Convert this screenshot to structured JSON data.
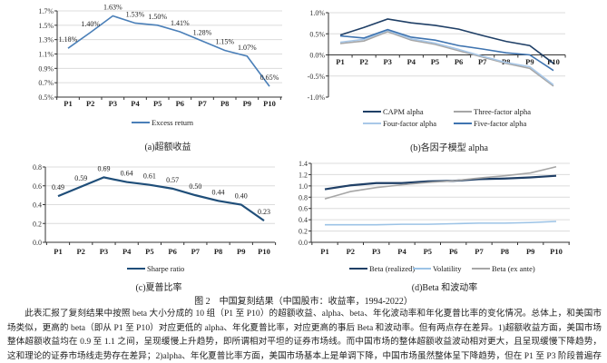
{
  "figure_caption": "图 2　中国复刻结果（中国股市：收益率，1994-2022）",
  "paragraph": "此表汇报了复刻结果中按照 beta 大小分成的 10 组（P1 至 P10）的超额收益、alpha、beta、年化波动率和年化夏普比率的变化情况。总体上，和美国市场类似，更高的 beta（即从 P1 至 P10）对应更低的 alpha、年化夏普比率，对应更高的事后 Beta 和波动率。但有两点存在差异。1)超额收益方面，美国市场整体超额收益均在 0.9 至 1.1 之间，呈现缓慢上升趋势，即所谓相对平坦的证券市场线。而中国市场的整体超额收益波动相对更大，且呈现缓慢下降趋势，这和理论的证券市场线走势存在差异；2)alpha、年化夏普比率方面，美国市场基本上是单调下降，中国市场虽然整体呈下降趋势，但在 P1 至 P3 阶段普遍存在阶段性上升现象。",
  "chart_data": [
    {
      "type": "line",
      "caption": "(a)超额收益",
      "categories": [
        "P1",
        "P2",
        "P3",
        "P4",
        "P5",
        "P6",
        "P7",
        "P8",
        "P9",
        "P10"
      ],
      "yticks": [
        "0.5%",
        "0.7%",
        "0.9%",
        "1.1%",
        "1.3%",
        "1.5%",
        "1.7%"
      ],
      "ylim": [
        0.5,
        1.7
      ],
      "grid": true,
      "legend": "bottom",
      "data_labels": [
        "1.18%",
        "1.40%",
        "1.63%",
        "1.53%",
        "1.50%",
        "1.41%",
        "1.28%",
        "1.15%",
        "1.07%",
        "0.65%"
      ],
      "series": [
        {
          "name": "Excess return",
          "color": "#4a7fb8",
          "values": [
            1.18,
            1.4,
            1.63,
            1.53,
            1.5,
            1.41,
            1.28,
            1.15,
            1.07,
            0.65
          ]
        }
      ]
    },
    {
      "type": "line",
      "caption": "(b)各因子模型 alpha",
      "categories": [
        "P1",
        "P2",
        "P3",
        "P4",
        "P5",
        "P6",
        "P7",
        "P8",
        "P9",
        "P10"
      ],
      "yticks": [
        "-1.0%",
        "-0.5%",
        "0.0%",
        "0.5%",
        "1.0%"
      ],
      "ylim": [
        -1.0,
        1.0
      ],
      "grid": true,
      "legend": "bottom",
      "series": [
        {
          "name": "CAPM alpha",
          "color": "#1f3f66",
          "values": [
            0.47,
            0.65,
            0.85,
            0.76,
            0.7,
            0.61,
            0.46,
            0.32,
            0.22,
            -0.2
          ]
        },
        {
          "name": "Three-factor alpha",
          "color": "#a6a6a6",
          "values": [
            0.27,
            0.33,
            0.55,
            0.35,
            0.25,
            0.1,
            -0.05,
            -0.2,
            -0.32,
            -0.74
          ]
        },
        {
          "name": "Four-factor alpha",
          "color": "#a9c8e8",
          "values": [
            0.3,
            0.37,
            0.58,
            0.38,
            0.28,
            0.13,
            -0.03,
            -0.18,
            -0.28,
            -0.71
          ]
        },
        {
          "name": "Five-factor alpha",
          "color": "#3f74b0",
          "values": [
            0.45,
            0.4,
            0.6,
            0.42,
            0.35,
            0.22,
            0.14,
            0.05,
            0.0,
            -0.37
          ]
        }
      ]
    },
    {
      "type": "line",
      "caption": "(c)夏普比率",
      "categories": [
        "P1",
        "P2",
        "P3",
        "P4",
        "P5",
        "P6",
        "P7",
        "P8",
        "P9",
        "P10"
      ],
      "yticks": [
        "0.0",
        "0.2",
        "0.4",
        "0.6",
        "0.8"
      ],
      "ylim": [
        0,
        0.8
      ],
      "grid": true,
      "legend": "bottom",
      "data_labels": [
        "0.49",
        "0.59",
        "0.69",
        "0.64",
        "0.61",
        "0.57",
        "0.50",
        "0.44",
        "0.40",
        "0.23"
      ],
      "series": [
        {
          "name": "Sharpe ratio",
          "color": "#1f4e79",
          "values": [
            0.49,
            0.59,
            0.69,
            0.64,
            0.61,
            0.57,
            0.5,
            0.44,
            0.4,
            0.23
          ]
        }
      ]
    },
    {
      "type": "line",
      "caption": "(d)Beta 和波动率",
      "categories": [
        "P1",
        "P2",
        "P3",
        "P4",
        "P5",
        "P6",
        "P7",
        "P8",
        "P9",
        "P10"
      ],
      "yticks": [
        "0.0",
        "0.2",
        "0.4",
        "0.6",
        "0.8",
        "1.0",
        "1.2",
        "1.4"
      ],
      "ylim": [
        0,
        1.4
      ],
      "grid": true,
      "legend": "bottom",
      "series": [
        {
          "name": "Beta (realized)",
          "color": "#1f3f66",
          "values": [
            0.94,
            1.01,
            1.05,
            1.05,
            1.08,
            1.09,
            1.12,
            1.13,
            1.15,
            1.18
          ]
        },
        {
          "name": "Volatility",
          "color": "#9cc3e6",
          "values": [
            0.31,
            0.31,
            0.31,
            0.32,
            0.32,
            0.33,
            0.34,
            0.34,
            0.35,
            0.37
          ]
        },
        {
          "name": "Beta (ex ante)",
          "color": "#a6a6a6",
          "values": [
            0.77,
            0.9,
            0.97,
            1.02,
            1.06,
            1.09,
            1.14,
            1.18,
            1.23,
            1.34
          ]
        }
      ]
    }
  ]
}
